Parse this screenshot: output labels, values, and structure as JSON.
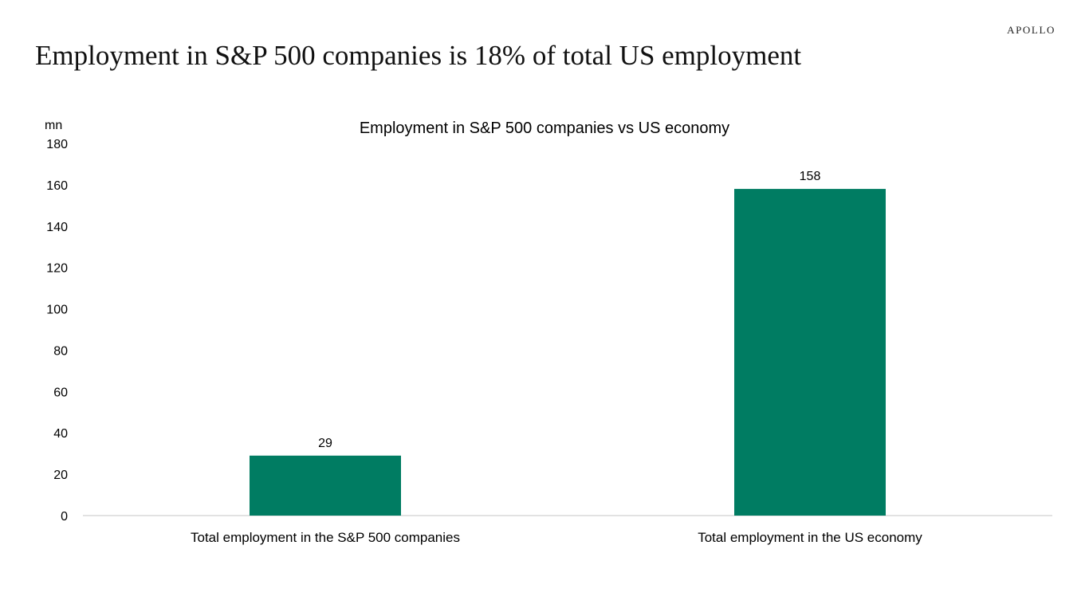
{
  "brand": "APOLLO",
  "headline": "Employment in S&P 500 companies is 18% of total US employment",
  "colors": {
    "bar": "#007c62",
    "axis": "#d9d9d9"
  },
  "chart_data": {
    "type": "bar",
    "title": "Employment in S&P 500 companies vs US economy",
    "ylabel": "mn",
    "xlabel": "",
    "categories": [
      "Total employment in the S&P 500 companies",
      "Total employment in the US economy"
    ],
    "values": [
      29,
      158
    ],
    "data_labels": [
      "29",
      "158"
    ],
    "ylim": [
      0,
      180
    ],
    "yticks": [
      0,
      20,
      40,
      60,
      80,
      100,
      120,
      140,
      160,
      180
    ],
    "grid": false,
    "legend": "none"
  }
}
